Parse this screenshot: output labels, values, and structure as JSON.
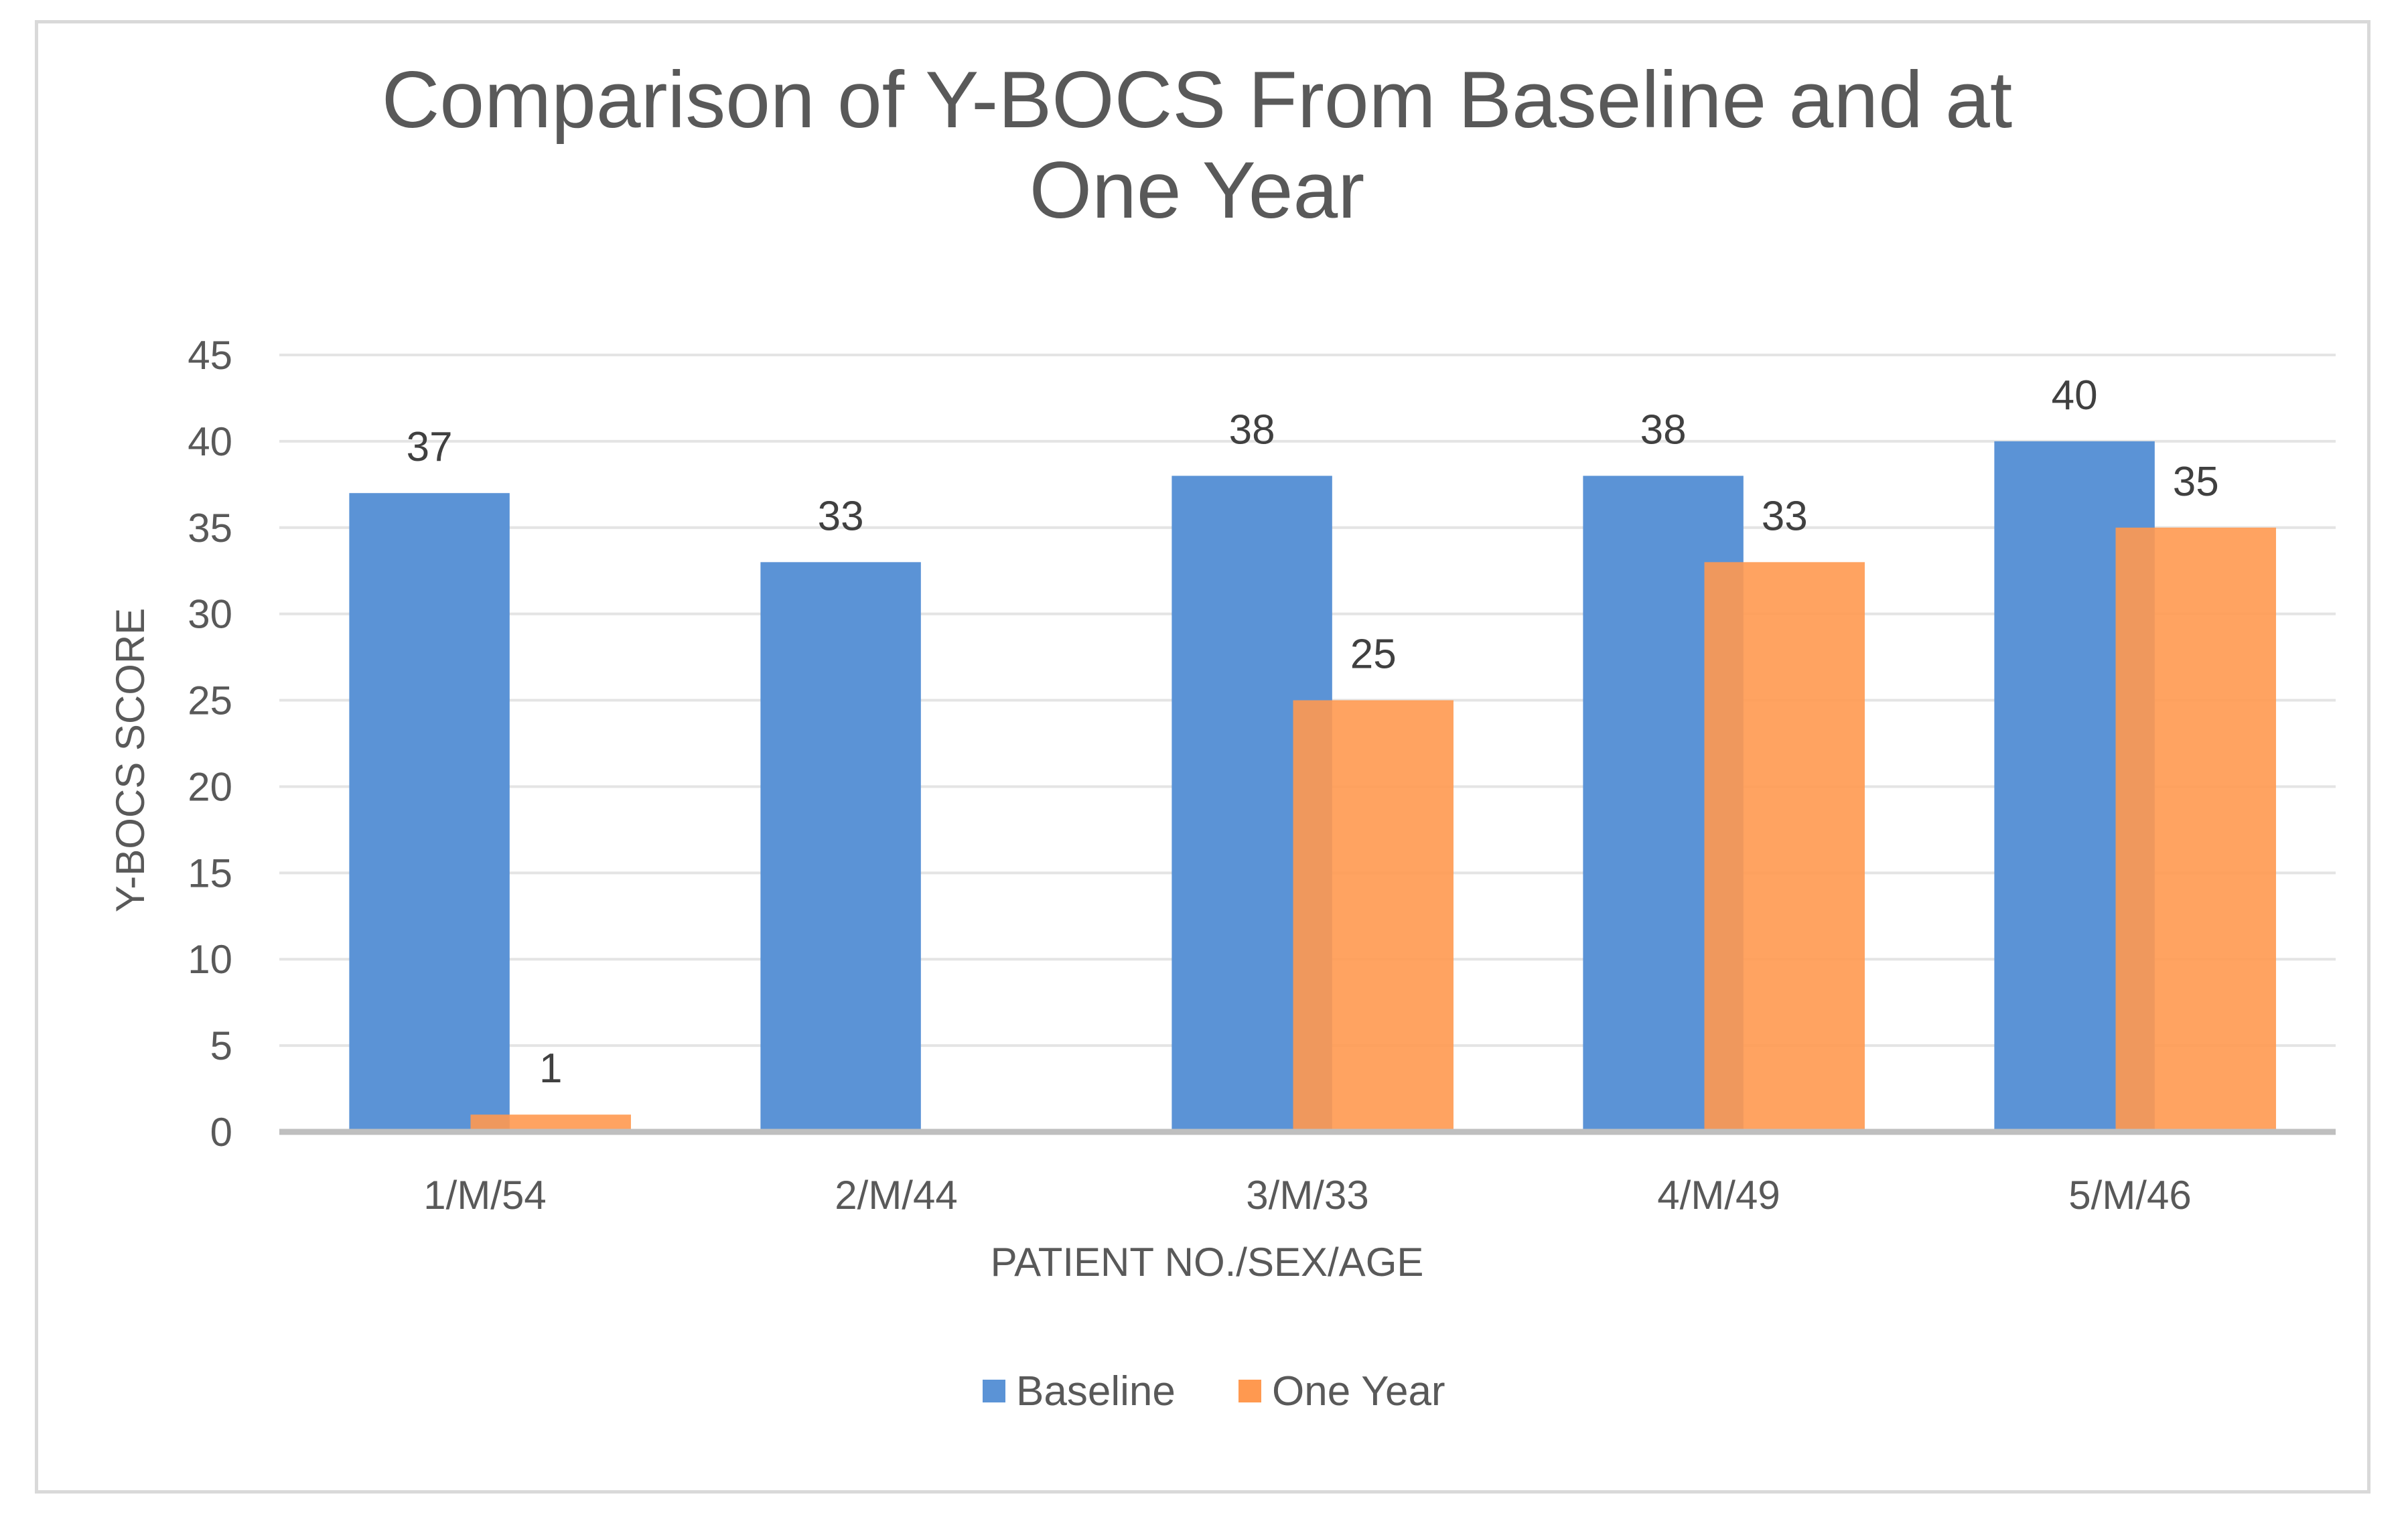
{
  "chart_data": {
    "type": "bar",
    "title_lines": [
      "Comparison of Y-BOCS From Baseline and at",
      "One Year"
    ],
    "xlabel": "PATIENT NO./SEX/AGE",
    "ylabel": "Y-BOCS SCORE",
    "categories": [
      "1/M/54",
      "2/M/44",
      "3/M/33",
      "4/M/49",
      "5/M/46"
    ],
    "ylim": [
      0,
      45
    ],
    "yticks": [
      0,
      5,
      10,
      15,
      20,
      25,
      30,
      35,
      40,
      45
    ],
    "grid": true,
    "legend_position": "bottom",
    "series": [
      {
        "name": "Baseline",
        "color": "#5b93d6",
        "values": [
          37,
          33,
          38,
          38,
          40
        ],
        "labels": [
          "37",
          "33",
          "38",
          "38",
          "40"
        ]
      },
      {
        "name": "One Year",
        "color": "#ff9950",
        "values": [
          1,
          null,
          25,
          33,
          35
        ],
        "labels": [
          "1",
          "",
          "25",
          "33",
          "35"
        ]
      }
    ]
  }
}
